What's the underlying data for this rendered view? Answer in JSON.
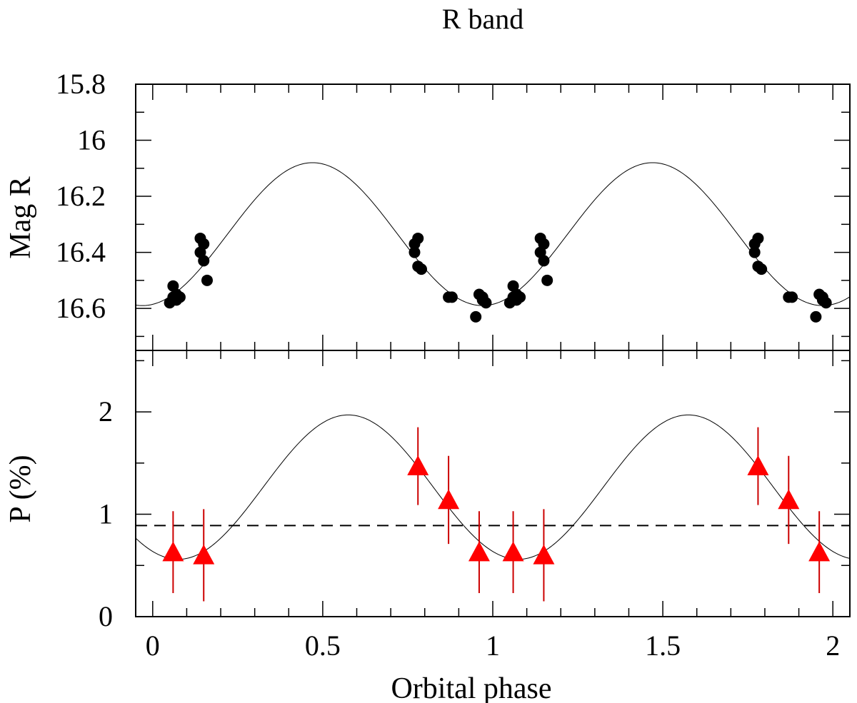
{
  "chart_data": [
    {
      "type": "scatter",
      "title": "R band",
      "xlabel": "",
      "ylabel": "Mag R",
      "xlim": [
        -0.05,
        2.05
      ],
      "ylim": [
        16.75,
        15.8
      ],
      "y_inverted": true,
      "yticks": [
        "15.8",
        "16",
        "16.2",
        "16.4",
        "16.6"
      ],
      "grid": false,
      "colors": {
        "points": "#000000",
        "model": "#000000"
      },
      "series": [
        {
          "marker": "filled-circle",
          "x": [
            0.05,
            0.06,
            0.07,
            0.06,
            0.07,
            0.08,
            0.14,
            0.15,
            0.14,
            0.15,
            0.16,
            0.78,
            0.77,
            0.77,
            0.78,
            0.79,
            0.87,
            0.88,
            0.96,
            0.97,
            0.98,
            0.95,
            0.97,
            1.05,
            1.06,
            1.07,
            1.06,
            1.07,
            1.08,
            1.14,
            1.15,
            1.14,
            1.15,
            1.16,
            1.78,
            1.77,
            1.77,
            1.78,
            1.79,
            1.87,
            1.88,
            1.96,
            1.97,
            1.98,
            1.95,
            1.97
          ],
          "y": [
            16.58,
            16.52,
            16.57,
            16.56,
            16.55,
            16.56,
            16.35,
            16.37,
            16.4,
            16.43,
            16.5,
            16.35,
            16.37,
            16.4,
            16.45,
            16.46,
            16.56,
            16.56,
            16.55,
            16.56,
            16.58,
            16.63,
            16.57,
            16.58,
            16.52,
            16.57,
            16.56,
            16.55,
            16.56,
            16.35,
            16.37,
            16.4,
            16.43,
            16.5,
            16.35,
            16.37,
            16.4,
            16.45,
            16.46,
            16.56,
            16.56,
            16.55,
            16.56,
            16.58,
            16.63,
            16.57
          ]
        }
      ],
      "model_curve": {
        "type": "sinusoid",
        "mean": 16.335,
        "amplitude": 0.255,
        "period": 1.0,
        "min_mag_phase": 0.47
      }
    },
    {
      "type": "scatter",
      "title": "",
      "xlabel": "Orbital phase",
      "ylabel": "P (%)",
      "xlim": [
        -0.05,
        2.05
      ],
      "ylim": [
        0,
        2.6
      ],
      "xticks": [
        "0",
        "0.5",
        "1",
        "1.5",
        "2"
      ],
      "yticks": [
        "0",
        "1",
        "2"
      ],
      "grid": false,
      "colors": {
        "points": "#ff0000",
        "errorbars": "#cc0000",
        "model": "#000000",
        "mean_line": "#000000"
      },
      "series": [
        {
          "marker": "filled-triangle",
          "x": [
            0.06,
            0.15,
            0.78,
            0.87,
            0.96,
            1.06,
            1.15,
            1.78,
            1.87,
            1.96
          ],
          "y": [
            0.63,
            0.6,
            1.47,
            1.14,
            0.63,
            0.63,
            0.6,
            1.47,
            1.14,
            0.63
          ],
          "yerr": [
            0.4,
            0.45,
            0.38,
            0.43,
            0.4,
            0.4,
            0.45,
            0.38,
            0.43,
            0.4
          ]
        }
      ],
      "mean_line": 0.89,
      "model_curve": {
        "type": "sinusoid",
        "mean": 1.265,
        "amplitude": 0.705,
        "period": 1.0,
        "peak_phase": 0.575
      }
    }
  ]
}
